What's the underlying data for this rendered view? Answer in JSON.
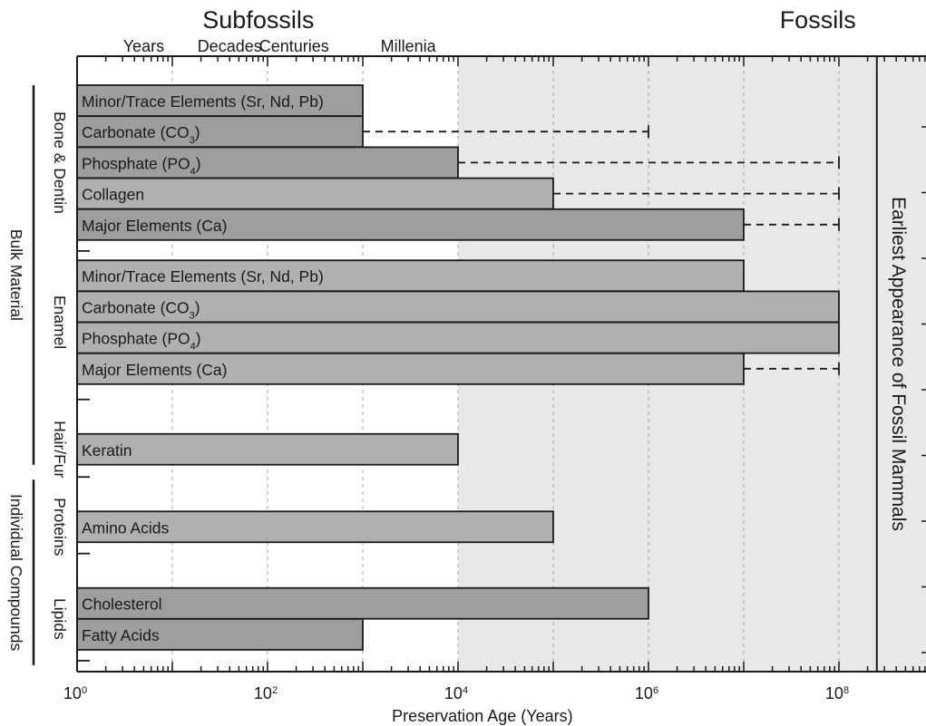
{
  "chart_data": {
    "type": "bar",
    "orientation": "horizontal",
    "x_scale": "log",
    "xlim": [
      1,
      10000000000
    ],
    "xlabel": "Preservation Age (Years)",
    "x_tick_labels": [
      {
        "value": 1,
        "base": "10",
        "exp": "0"
      },
      {
        "value": 100,
        "base": "10",
        "exp": "2"
      },
      {
        "value": 10000,
        "base": "10",
        "exp": "4"
      },
      {
        "value": 1000000,
        "base": "10",
        "exp": "6"
      },
      {
        "value": 100000000,
        "base": "10",
        "exp": "8"
      }
    ],
    "top_headers": [
      {
        "text": "Subfossils",
        "x_value": 80
      },
      {
        "text": "Fossils",
        "x_value": 60000000
      }
    ],
    "time_labels": [
      {
        "text": "Years",
        "x_value": 5
      },
      {
        "text": "Decades",
        "x_value": 40
      },
      {
        "text": "Centuries",
        "x_value": 190
      },
      {
        "text": "Millenia",
        "x_value": 3000
      }
    ],
    "fossil_region_start": 10000,
    "grid_lines_x": [
      10,
      100,
      1000,
      10000,
      100000,
      1000000,
      10000000,
      100000000
    ],
    "vertical_marker": {
      "value": 250000000,
      "label": "Earliest Appearance of Fossil Mammals"
    },
    "bars": [
      {
        "label": "Minor/Trace Elements (Sr, Nd, Pb)",
        "value": 1000,
        "shade": "dark"
      },
      {
        "label": "Carbonate (CO",
        "sub": "3",
        "suffix": ")",
        "value": 1000,
        "dashed_to": 1000000,
        "shade": "dark"
      },
      {
        "label": "Phosphate (PO",
        "sub": "4",
        "suffix": ")",
        "value": 10000,
        "dashed_to": 100000000,
        "shade": "dark"
      },
      {
        "label": "Collagen",
        "value": 100000,
        "dashed_to": 100000000,
        "shade": "light"
      },
      {
        "label": "Major Elements (Ca)",
        "value": 10000000,
        "dashed_to": 100000000,
        "shade": "dark"
      },
      {
        "label": "Minor/Trace Elements (Sr, Nd, Pb)",
        "value": 10000000,
        "shade": "light"
      },
      {
        "label": "Carbonate (CO",
        "sub": "3",
        "suffix": ")",
        "value": 100000000,
        "shade": "light"
      },
      {
        "label": "Phosphate (PO",
        "sub": "4",
        "suffix": ")",
        "value": 100000000,
        "shade": "light"
      },
      {
        "label": "Major Elements (Ca)",
        "value": 10000000,
        "dashed_to": 100000000,
        "shade": "light"
      },
      {
        "label": "Keratin",
        "value": 10000,
        "shade": "light"
      },
      {
        "label": "Amino Acids",
        "value": 100000,
        "shade": "light"
      },
      {
        "label": "Cholesterol",
        "value": 1000000,
        "shade": "dark"
      },
      {
        "label": "Fatty Acids",
        "value": 1000,
        "shade": "dark"
      }
    ],
    "sub_groups": [
      {
        "label": "Bone & Dentin",
        "first_bar": 0,
        "last_bar": 4
      },
      {
        "label": "Enamel",
        "first_bar": 5,
        "last_bar": 8
      },
      {
        "label": "Hair/Fur",
        "first_bar": 9,
        "last_bar": 9
      },
      {
        "label": "Proteins",
        "first_bar": 10,
        "last_bar": 10
      },
      {
        "label": "Lipids",
        "first_bar": 11,
        "last_bar": 12
      }
    ],
    "super_groups": [
      {
        "label": "Bulk Material",
        "first_bar": 0,
        "last_bar": 9
      },
      {
        "label": "Individual Compounds",
        "first_bar": 10,
        "last_bar": 12
      }
    ],
    "colors": {
      "bar_dark": "#9e9e9e",
      "bar_light": "#b0b0b0",
      "fossil_bg": "#e8e8e8",
      "grid": "#b4b4b4",
      "line": "#1a1a1a"
    }
  }
}
